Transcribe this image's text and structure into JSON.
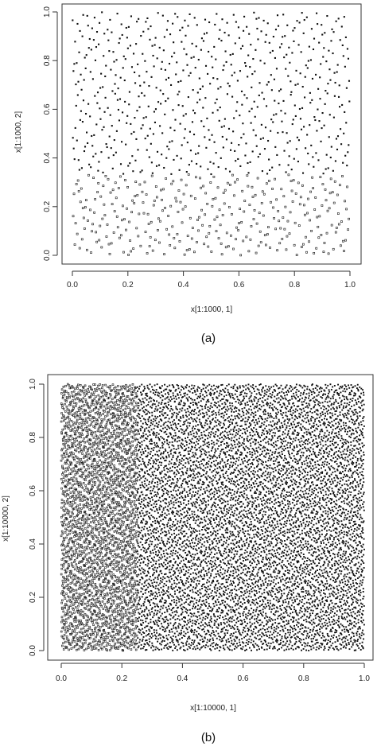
{
  "chart_data": [
    {
      "type": "scatter",
      "caption": "(a)",
      "xlabel": "x[1:1000, 1]",
      "ylabel": "x[1:1000, 2]",
      "xlim": [
        0.0,
        1.0
      ],
      "ylim": [
        0.0,
        1.0
      ],
      "x_ticks": [
        "0.0",
        "0.2",
        "0.4",
        "0.6",
        "0.8",
        "1.0"
      ],
      "y_ticks": [
        "0.0",
        "0.2",
        "0.4",
        "0.6",
        "0.8",
        "1.0"
      ],
      "n_points": 1000,
      "point_pattern": "2-D low-discrepancy lattice of first 1000 points in unit square",
      "series_color": "#111111",
      "grid": false,
      "legend": "none"
    },
    {
      "type": "scatter",
      "caption": "(b)",
      "xlabel": "x[1:10000, 1]",
      "ylabel": "x[1:10000, 2]",
      "xlim": [
        0.0,
        1.0
      ],
      "ylim": [
        0.0,
        1.0
      ],
      "x_ticks": [
        "0.0",
        "0.2",
        "0.4",
        "0.6",
        "0.8",
        "1.0"
      ],
      "y_ticks": [
        "0.0",
        "0.2",
        "0.4",
        "0.6",
        "0.8",
        "1.0"
      ],
      "n_points": 10000,
      "point_pattern": "2-D low-discrepancy sequence of first 10000 points, dense diagonal texture",
      "series_color": "#111111",
      "grid": false,
      "legend": "none"
    }
  ]
}
